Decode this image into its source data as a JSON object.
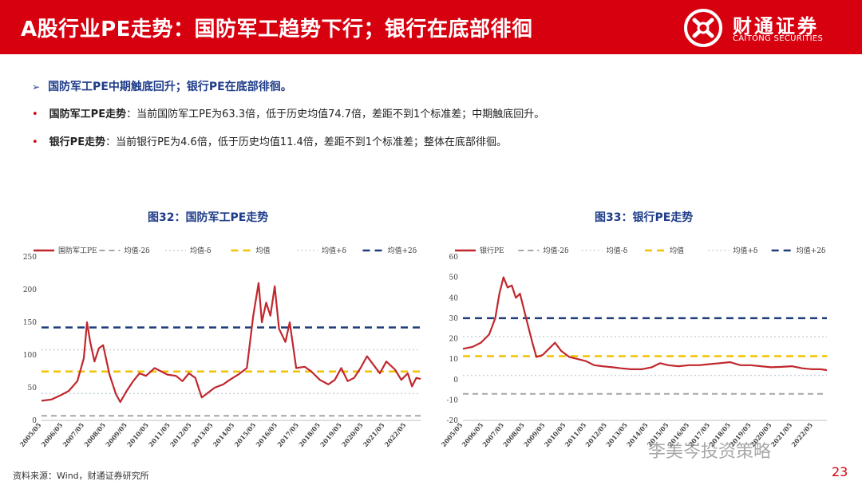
{
  "header": {
    "title": "A股行业PE走势：国防军工趋势下行；银行在底部徘徊"
  },
  "logo": {
    "cn": "财通证券",
    "en": "CAITONG SECURITIES"
  },
  "headline": "国防军工PE中期触底回升；银行PE在底部徘徊。",
  "bullets": [
    {
      "label": "国防军工PE走势",
      "text": "：当前国防军工PE为63.3倍，低于历史均值74.7倍，差距不到1个标准差；中期触底回升。"
    },
    {
      "label": "银行PE走势",
      "text": "：当前银行PE为4.6倍，低于历史均值11.4倍，差距不到1个标准差；整体在底部徘徊。"
    }
  ],
  "colors": {
    "brand": "#d7000f",
    "headline": "#1f3c88",
    "series": "#c0272d",
    "mean": "#f2c200",
    "pm1": "#c8d3dc",
    "pm2": "#1f3c7a",
    "minus2": "#a6a6a6"
  },
  "chart_data": [
    {
      "type": "line",
      "title": "图32：国防军工PE走势",
      "legend": [
        "国防军工PE",
        "均值-2δ",
        "均值-δ",
        "均值",
        "均值+δ",
        "均值+2δ"
      ],
      "ylim": [
        0,
        250
      ],
      "yticks": [
        0,
        50,
        100,
        150,
        200,
        250
      ],
      "xticks": [
        "2005/05",
        "2006/05",
        "2007/05",
        "2008/05",
        "2009/05",
        "2010/05",
        "2011/05",
        "2012/05",
        "2013/05",
        "2014/05",
        "2015/05",
        "2016/05",
        "2017/05",
        "2018/05",
        "2019/05",
        "2020/05",
        "2021/05",
        "2022/05"
      ],
      "x_start": 2005.33,
      "x_end": 2023.0,
      "reference_lines": {
        "minus2": 7,
        "minus1": 41,
        "mean": 74.7,
        "plus1": 108,
        "plus2": 142
      },
      "series": [
        {
          "name": "国防军工PE",
          "points": [
            [
              2005.33,
              30
            ],
            [
              2005.8,
              32
            ],
            [
              2006.2,
              38
            ],
            [
              2006.6,
              45
            ],
            [
              2007.0,
              60
            ],
            [
              2007.3,
              95
            ],
            [
              2007.45,
              150
            ],
            [
              2007.6,
              120
            ],
            [
              2007.8,
              90
            ],
            [
              2008.0,
              110
            ],
            [
              2008.2,
              115
            ],
            [
              2008.5,
              70
            ],
            [
              2008.8,
              40
            ],
            [
              2009.0,
              28
            ],
            [
              2009.3,
              45
            ],
            [
              2009.6,
              60
            ],
            [
              2009.9,
              72
            ],
            [
              2010.2,
              68
            ],
            [
              2010.6,
              80
            ],
            [
              2010.9,
              75
            ],
            [
              2011.2,
              70
            ],
            [
              2011.6,
              68
            ],
            [
              2011.9,
              60
            ],
            [
              2012.2,
              72
            ],
            [
              2012.5,
              65
            ],
            [
              2012.8,
              35
            ],
            [
              2013.0,
              40
            ],
            [
              2013.4,
              50
            ],
            [
              2013.8,
              55
            ],
            [
              2014.1,
              62
            ],
            [
              2014.5,
              70
            ],
            [
              2014.9,
              80
            ],
            [
              2015.2,
              160
            ],
            [
              2015.45,
              210
            ],
            [
              2015.6,
              150
            ],
            [
              2015.8,
              180
            ],
            [
              2016.0,
              160
            ],
            [
              2016.2,
              205
            ],
            [
              2016.4,
              140
            ],
            [
              2016.7,
              120
            ],
            [
              2016.9,
              150
            ],
            [
              2017.2,
              80
            ],
            [
              2017.6,
              82
            ],
            [
              2017.9,
              75
            ],
            [
              2018.3,
              62
            ],
            [
              2018.7,
              55
            ],
            [
              2019.0,
              62
            ],
            [
              2019.3,
              80
            ],
            [
              2019.6,
              60
            ],
            [
              2019.9,
              65
            ],
            [
              2020.2,
              80
            ],
            [
              2020.5,
              98
            ],
            [
              2020.8,
              85
            ],
            [
              2021.1,
              72
            ],
            [
              2021.4,
              90
            ],
            [
              2021.8,
              78
            ],
            [
              2022.1,
              62
            ],
            [
              2022.4,
              72
            ],
            [
              2022.6,
              52
            ],
            [
              2022.8,
              65
            ],
            [
              2023.0,
              63.3
            ]
          ]
        }
      ]
    },
    {
      "type": "line",
      "title": "图33：银行PE走势",
      "legend": [
        "银行PE",
        "均值-2δ",
        "均值-δ",
        "均值",
        "均值+δ",
        "均值+2δ"
      ],
      "ylim": [
        -20,
        60
      ],
      "yticks": [
        -20,
        -10,
        0,
        10,
        20,
        30,
        40,
        50,
        60
      ],
      "xticks": [
        "2005/05",
        "2006/05",
        "2007/05",
        "2008/05",
        "2009/05",
        "2010/05",
        "2011/05",
        "2012/05",
        "2013/05",
        "2014/05",
        "2015/05",
        "2016/05",
        "2017/05",
        "2018/05",
        "2019/05",
        "2020/05",
        "2021/05",
        "2022/05"
      ],
      "x_start": 2005.33,
      "x_end": 2023.0,
      "reference_lines": {
        "minus2": -7,
        "minus1": 2,
        "mean": 11.4,
        "plus1": 21,
        "plus2": 30
      },
      "series": [
        {
          "name": "银行PE",
          "points": [
            [
              2005.33,
              15
            ],
            [
              2005.8,
              16
            ],
            [
              2006.2,
              18
            ],
            [
              2006.6,
              22
            ],
            [
              2006.9,
              30
            ],
            [
              2007.1,
              42
            ],
            [
              2007.3,
              50
            ],
            [
              2007.5,
              45
            ],
            [
              2007.7,
              46
            ],
            [
              2007.9,
              40
            ],
            [
              2008.1,
              42
            ],
            [
              2008.4,
              30
            ],
            [
              2008.7,
              18
            ],
            [
              2008.9,
              11
            ],
            [
              2009.2,
              12
            ],
            [
              2009.5,
              15
            ],
            [
              2009.8,
              18
            ],
            [
              2010.1,
              14
            ],
            [
              2010.5,
              11
            ],
            [
              2010.9,
              10
            ],
            [
              2011.3,
              9
            ],
            [
              2011.7,
              7
            ],
            [
              2012.1,
              6.5
            ],
            [
              2012.6,
              6
            ],
            [
              2013.0,
              5.5
            ],
            [
              2013.5,
              5
            ],
            [
              2014.0,
              5
            ],
            [
              2014.5,
              6
            ],
            [
              2014.9,
              8
            ],
            [
              2015.3,
              7
            ],
            [
              2015.8,
              6.5
            ],
            [
              2016.3,
              7
            ],
            [
              2016.8,
              7
            ],
            [
              2017.3,
              7.5
            ],
            [
              2017.8,
              8
            ],
            [
              2018.3,
              8.5
            ],
            [
              2018.8,
              7
            ],
            [
              2019.3,
              7
            ],
            [
              2019.8,
              6.5
            ],
            [
              2020.3,
              6
            ],
            [
              2020.8,
              6.2
            ],
            [
              2021.3,
              6.5
            ],
            [
              2021.8,
              5.5
            ],
            [
              2022.3,
              5
            ],
            [
              2022.7,
              5
            ],
            [
              2023.0,
              4.6
            ]
          ]
        }
      ]
    }
  ],
  "source": "资料来源：Wind，财通证券研究所",
  "page_number": "23",
  "watermark": "李美岑投资策略"
}
